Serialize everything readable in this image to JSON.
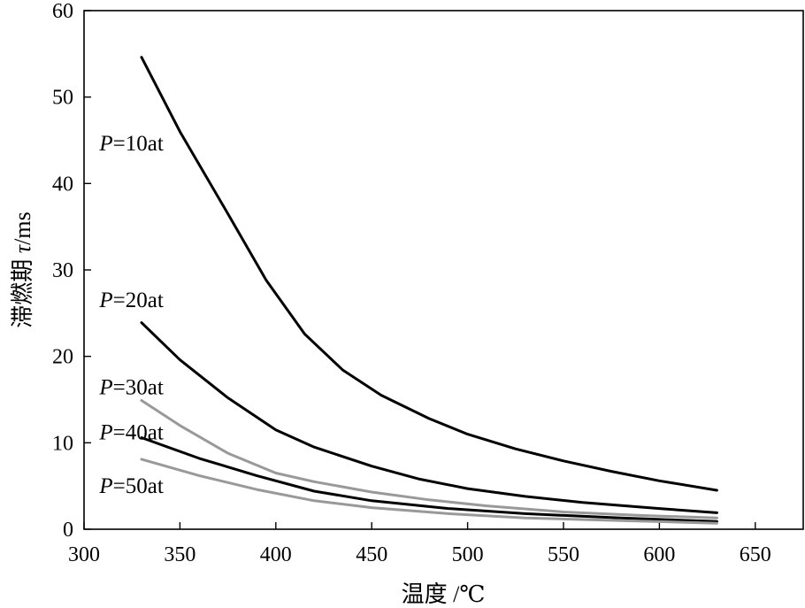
{
  "chart_data": {
    "type": "line",
    "xlabel": "温度 /℃",
    "ylabel_prefix": "滞燃期 ",
    "ylabel_symbol": "τ",
    "ylabel_suffix": "/ms",
    "xlim": [
      300,
      675
    ],
    "ylim": [
      0,
      60
    ],
    "xticks": [
      300,
      350,
      400,
      450,
      500,
      550,
      600,
      650
    ],
    "yticks": [
      0,
      10,
      20,
      30,
      40,
      50,
      60
    ],
    "grid": false,
    "legend": "none",
    "series": [
      {
        "name": "P=10at",
        "label_var": "P",
        "label_rest": "=10at",
        "color": "#000000",
        "x": [
          330,
          350,
          375,
          395,
          415,
          435,
          455,
          480,
          500,
          525,
          550,
          575,
          600,
          630
        ],
        "y": [
          54.6,
          46.0,
          36.5,
          28.8,
          22.6,
          18.4,
          15.5,
          12.8,
          11.0,
          9.3,
          7.9,
          6.7,
          5.6,
          4.5
        ]
      },
      {
        "name": "P=20at",
        "label_var": "P",
        "label_rest": "=20at",
        "color": "#000000",
        "x": [
          330,
          350,
          375,
          400,
          420,
          450,
          475,
          500,
          530,
          560,
          600,
          630
        ],
        "y": [
          23.9,
          19.6,
          15.2,
          11.5,
          9.5,
          7.3,
          5.8,
          4.7,
          3.8,
          3.1,
          2.4,
          1.9
        ]
      },
      {
        "name": "P=30at",
        "label_var": "P",
        "label_rest": "=30at",
        "color": "#999999",
        "x": [
          330,
          350,
          375,
          400,
          420,
          450,
          480,
          510,
          550,
          590,
          630
        ],
        "y": [
          14.9,
          12.0,
          8.8,
          6.5,
          5.5,
          4.3,
          3.4,
          2.7,
          2.0,
          1.6,
          1.3
        ]
      },
      {
        "name": "P=40at",
        "label_var": "P",
        "label_rest": "=40at",
        "color": "#000000",
        "x": [
          330,
          360,
          390,
          420,
          450,
          490,
          530,
          580,
          630
        ],
        "y": [
          10.6,
          8.2,
          6.2,
          4.4,
          3.3,
          2.4,
          1.8,
          1.3,
          0.9
        ]
      },
      {
        "name": "P=50at",
        "label_var": "P",
        "label_rest": "=50at",
        "color": "#999999",
        "x": [
          330,
          360,
          390,
          420,
          450,
          490,
          530,
          580,
          630
        ],
        "y": [
          8.1,
          6.2,
          4.6,
          3.3,
          2.5,
          1.8,
          1.3,
          1.0,
          0.7
        ]
      }
    ],
    "annotations": [
      {
        "series": 0,
        "x": 308,
        "y": 43.8
      },
      {
        "series": 1,
        "x": 308,
        "y": 25.7
      },
      {
        "series": 2,
        "x": 308,
        "y": 15.6
      },
      {
        "series": 3,
        "x": 308,
        "y": 10.4
      },
      {
        "series": 4,
        "x": 308,
        "y": 4.2
      }
    ]
  }
}
